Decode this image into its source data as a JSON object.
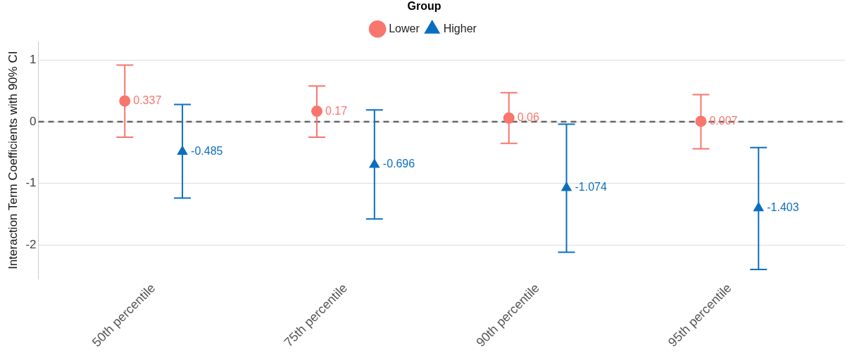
{
  "chart_data": {
    "type": "scatter",
    "ylabel": "Interaction Term Coefficients with 90% CI",
    "legend_title": "Group",
    "categories": [
      "50th percentile",
      "75th percentile",
      "90th percentile",
      "95th percentile"
    ],
    "series": [
      {
        "name": "Lower",
        "color": "#f8766d",
        "marker": "circle",
        "values": [
          0.337,
          0.17,
          0.06,
          0.007
        ],
        "errors": [
          [
            -0.25,
            0.92
          ],
          [
            -0.25,
            0.58
          ],
          [
            -0.35,
            0.47
          ],
          [
            -0.44,
            0.44
          ]
        ]
      },
      {
        "name": "Higher",
        "color": "#0b6fc0",
        "marker": "triangle",
        "values": [
          -0.485,
          -0.696,
          -1.074,
          -1.403
        ],
        "errors": [
          [
            -1.24,
            0.28
          ],
          [
            -1.58,
            0.19
          ],
          [
            -2.12,
            -0.04
          ],
          [
            -2.4,
            -0.42
          ]
        ]
      }
    ],
    "ylim": [
      -2.55,
      1.3
    ],
    "yticks": [
      -2,
      -1,
      0,
      1
    ],
    "ref_lines": [
      {
        "axis": "y",
        "value": 0,
        "color": "#666666",
        "line_style": "dashed"
      }
    ],
    "grid": "y",
    "legend": "top",
    "data_labels": true
  }
}
